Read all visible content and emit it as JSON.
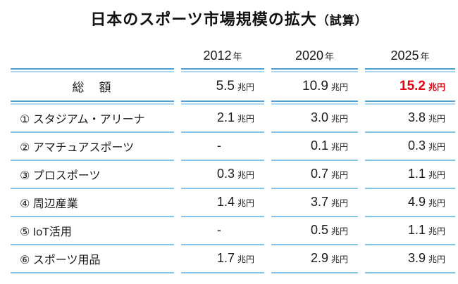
{
  "title": {
    "main": "日本のスポーツ市場規模の拡大",
    "sub": "（試算）"
  },
  "table": {
    "header": [
      {
        "num": "2012",
        "suffix": "年"
      },
      {
        "num": "2020",
        "suffix": "年"
      },
      {
        "num": "2025",
        "suffix": "年"
      }
    ],
    "total": {
      "label": "総　額",
      "cells": [
        {
          "num": "5.5",
          "unit": "兆円"
        },
        {
          "num": "10.9",
          "unit": "兆円"
        },
        {
          "num": "15.2",
          "unit": "兆円"
        }
      ]
    },
    "rows": [
      {
        "label": "① スタジアム・アリーナ",
        "cells": [
          {
            "num": "2.1",
            "unit": "兆円"
          },
          {
            "num": "3.0",
            "unit": "兆円"
          },
          {
            "num": "3.8",
            "unit": "兆円"
          }
        ]
      },
      {
        "label": "② アマチュアスポーツ",
        "cells": [
          {
            "num": "-",
            "unit": ""
          },
          {
            "num": "0.1",
            "unit": "兆円"
          },
          {
            "num": "0.3",
            "unit": "兆円"
          }
        ]
      },
      {
        "label": "③ プロスポーツ",
        "cells": [
          {
            "num": "0.3",
            "unit": "兆円"
          },
          {
            "num": "0.7",
            "unit": "兆円"
          },
          {
            "num": "1.1",
            "unit": "兆円"
          }
        ]
      },
      {
        "label": "④ 周辺産業",
        "cells": [
          {
            "num": "1.4",
            "unit": "兆円"
          },
          {
            "num": "3.7",
            "unit": "兆円"
          },
          {
            "num": "4.9",
            "unit": "兆円"
          }
        ]
      },
      {
        "label": "⑤ IoT活用",
        "cells": [
          {
            "num": "-",
            "unit": ""
          },
          {
            "num": "0.5",
            "unit": "兆円"
          },
          {
            "num": "1.1",
            "unit": "兆円"
          }
        ]
      },
      {
        "label": "⑥ スポーツ用品",
        "cells": [
          {
            "num": "1.7",
            "unit": "兆円"
          },
          {
            "num": "2.9",
            "unit": "兆円"
          },
          {
            "num": "3.9",
            "unit": "兆円"
          }
        ]
      }
    ],
    "colors": {
      "rule_dark_blue": "#4a9fd3",
      "rule_light_blue": "#aed9ee",
      "row_separator_blue": "#82c3e5",
      "highlight_red": "#e60012",
      "text": "#1a1a1a"
    }
  },
  "chart_data": {
    "type": "table",
    "title": "日本のスポーツ市場規模の拡大（試算）",
    "columns": [
      "",
      "2012年",
      "2020年",
      "2025年"
    ],
    "unit": "兆円",
    "rows": [
      [
        "総　額",
        "5.5兆円",
        "10.9兆円",
        "15.2兆円"
      ],
      [
        "① スタジアム・アリーナ",
        "2.1兆円",
        "3.0兆円",
        "3.8兆円"
      ],
      [
        "② アマチュアスポーツ",
        "-",
        "0.1兆円",
        "0.3兆円"
      ],
      [
        "③ プロスポーツ",
        "0.3兆円",
        "0.7兆円",
        "1.1兆円"
      ],
      [
        "④ 周辺産業",
        "1.4兆円",
        "3.7兆円",
        "4.9兆円"
      ],
      [
        "⑤ IoT活用",
        "-",
        "0.5兆円",
        "1.1兆円"
      ],
      [
        "⑥ スポーツ用品",
        "1.7兆円",
        "2.9兆円",
        "3.9兆円"
      ]
    ],
    "annotations": [
      "総額 2025年 の 15.2兆円 は赤色強調"
    ]
  }
}
